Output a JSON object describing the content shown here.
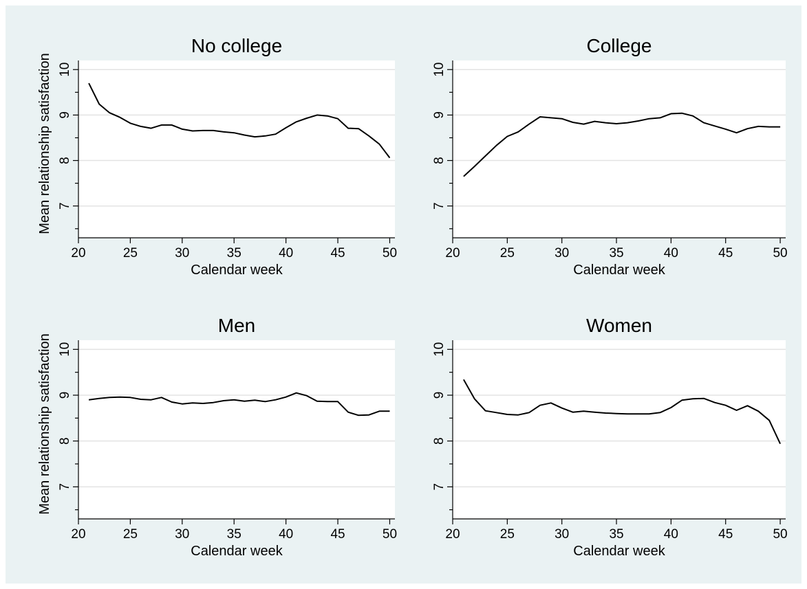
{
  "chart_data": [
    {
      "type": "line",
      "title": "No college",
      "xlabel": "Calendar week",
      "ylabel": "Mean relationship satisfaction",
      "xlim": [
        20,
        50.5
      ],
      "ylim": [
        6.3,
        10.2
      ],
      "xticks": [
        "20",
        "25",
        "30",
        "35",
        "40",
        "45",
        "50"
      ],
      "yticks": [
        "7",
        "8",
        "9",
        "10"
      ],
      "grid": true,
      "x": [
        21,
        22,
        23,
        24,
        25,
        26,
        27,
        28,
        29,
        30,
        31,
        32,
        33,
        34,
        35,
        36,
        37,
        38,
        39,
        40,
        41,
        42,
        43,
        44,
        45,
        46,
        47,
        48,
        49,
        50
      ],
      "series": [
        {
          "values": [
            9.7,
            9.24,
            9.05,
            8.95,
            8.82,
            8.75,
            8.71,
            8.78,
            8.78,
            8.69,
            8.65,
            8.66,
            8.66,
            8.63,
            8.61,
            8.56,
            8.52,
            8.54,
            8.58,
            8.72,
            8.85,
            8.93,
            9.0,
            8.98,
            8.92,
            8.71,
            8.7,
            8.54,
            8.36,
            8.06
          ]
        }
      ]
    },
    {
      "type": "line",
      "title": "College",
      "xlabel": "Calendar week",
      "ylabel": "",
      "xlim": [
        20,
        50.5
      ],
      "ylim": [
        6.3,
        10.2
      ],
      "xticks": [
        "20",
        "25",
        "30",
        "35",
        "40",
        "45",
        "50"
      ],
      "yticks": [
        "7",
        "8",
        "9",
        "10"
      ],
      "grid": true,
      "x": [
        21,
        22,
        23,
        24,
        25,
        26,
        27,
        28,
        29,
        30,
        31,
        32,
        33,
        34,
        35,
        36,
        37,
        38,
        39,
        40,
        41,
        42,
        43,
        44,
        45,
        46,
        47,
        48,
        49,
        50
      ],
      "series": [
        {
          "values": [
            7.65,
            7.87,
            8.1,
            8.33,
            8.53,
            8.63,
            8.8,
            8.96,
            8.94,
            8.92,
            8.84,
            8.8,
            8.86,
            8.83,
            8.81,
            8.83,
            8.87,
            8.92,
            8.94,
            9.03,
            9.04,
            8.98,
            8.83,
            8.76,
            8.69,
            8.61,
            8.7,
            8.75,
            8.74,
            8.74
          ]
        }
      ]
    },
    {
      "type": "line",
      "title": "Men",
      "xlabel": "Calendar week",
      "ylabel": "Mean relationship satisfaction",
      "xlim": [
        20,
        50.5
      ],
      "ylim": [
        6.3,
        10.2
      ],
      "xticks": [
        "20",
        "25",
        "30",
        "35",
        "40",
        "45",
        "50"
      ],
      "yticks": [
        "7",
        "8",
        "9",
        "10"
      ],
      "grid": true,
      "x": [
        21,
        22,
        23,
        24,
        25,
        26,
        27,
        28,
        29,
        30,
        31,
        32,
        33,
        34,
        35,
        36,
        37,
        38,
        39,
        40,
        41,
        42,
        43,
        44,
        45,
        46,
        47,
        48,
        49,
        50
      ],
      "series": [
        {
          "values": [
            8.9,
            8.93,
            8.95,
            8.96,
            8.95,
            8.91,
            8.9,
            8.95,
            8.85,
            8.81,
            8.83,
            8.82,
            8.84,
            8.88,
            8.9,
            8.87,
            8.89,
            8.86,
            8.9,
            8.96,
            9.05,
            8.99,
            8.87,
            8.86,
            8.86,
            8.63,
            8.56,
            8.57,
            8.65,
            8.65
          ]
        }
      ]
    },
    {
      "type": "line",
      "title": "Women",
      "xlabel": "Calendar week",
      "ylabel": "",
      "xlim": [
        20,
        50.5
      ],
      "ylim": [
        6.3,
        10.2
      ],
      "xticks": [
        "20",
        "25",
        "30",
        "35",
        "40",
        "45",
        "50"
      ],
      "yticks": [
        "7",
        "8",
        "9",
        "10"
      ],
      "grid": true,
      "x": [
        21,
        22,
        23,
        24,
        25,
        26,
        27,
        28,
        29,
        30,
        31,
        32,
        33,
        34,
        35,
        36,
        37,
        38,
        39,
        40,
        41,
        42,
        43,
        44,
        45,
        46,
        47,
        48,
        49,
        50
      ],
      "series": [
        {
          "values": [
            9.34,
            8.92,
            8.66,
            8.62,
            8.58,
            8.57,
            8.62,
            8.78,
            8.83,
            8.72,
            8.63,
            8.65,
            8.63,
            8.61,
            8.6,
            8.59,
            8.59,
            8.59,
            8.62,
            8.73,
            8.89,
            8.92,
            8.93,
            8.84,
            8.78,
            8.67,
            8.77,
            8.65,
            8.45,
            7.94
          ]
        }
      ]
    }
  ]
}
